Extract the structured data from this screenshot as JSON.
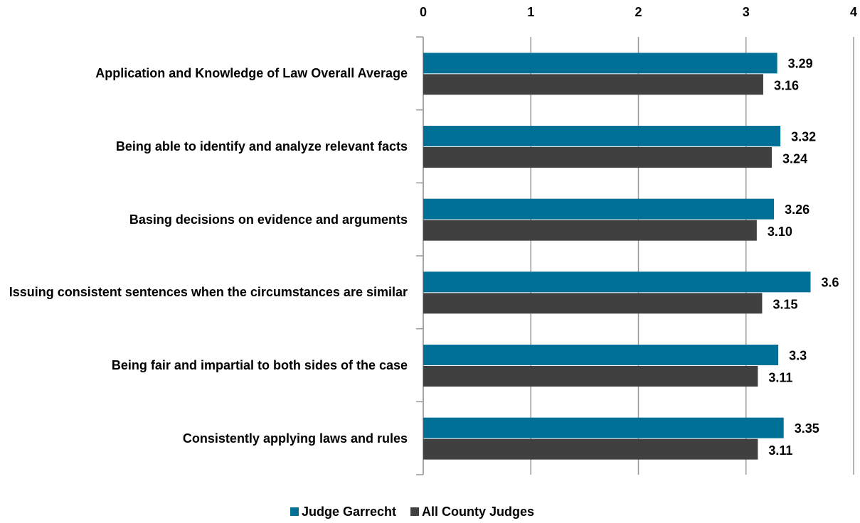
{
  "chart_data": {
    "type": "bar",
    "orientation": "horizontal",
    "categories": [
      "Application and Knowledge of Law Overall Average",
      "Being able to identify and analyze relevant facts",
      "Basing decisions on evidence and arguments",
      "Issuing consistent sentences when the circumstances are similar",
      "Being fair and impartial to both sides of the case",
      "Consistently applying laws and rules"
    ],
    "series": [
      {
        "name": "Judge Garrecht",
        "color": "#007096",
        "values": [
          3.29,
          3.32,
          3.26,
          3.6,
          3.3,
          3.35
        ]
      },
      {
        "name": "All County Judges",
        "color": "#404040",
        "values": [
          3.16,
          3.24,
          3.1,
          3.15,
          3.11,
          3.11
        ],
        "value_labels": [
          "3.16",
          "3.24",
          "3.10",
          "3.15",
          "3.11",
          "3.11"
        ]
      }
    ],
    "xlim": [
      0,
      4
    ],
    "xticks": [
      0,
      1,
      2,
      3,
      4
    ],
    "xaxis_position": "top",
    "grid": true,
    "legend": "bottom"
  }
}
